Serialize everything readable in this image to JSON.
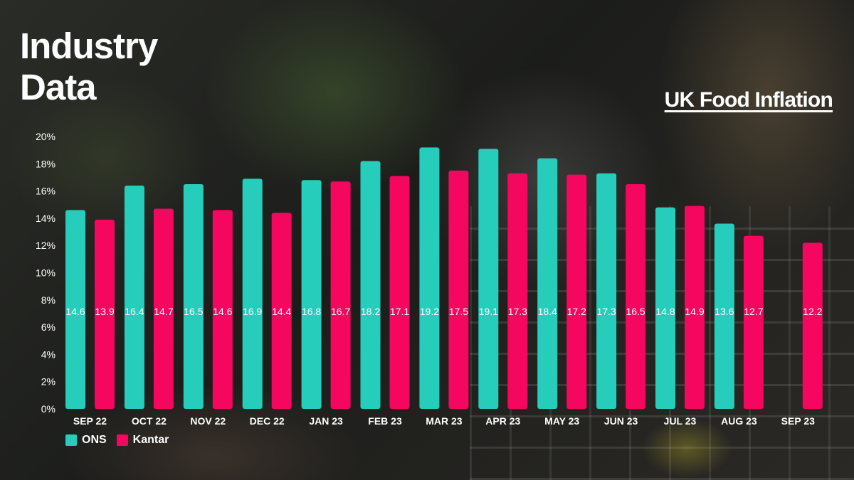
{
  "slide": {
    "title_line1": "Industry",
    "title_line2": "Data",
    "subtitle": "UK Food Inflation"
  },
  "colors": {
    "ons": "#27cdbb",
    "kantar": "#f5075f"
  },
  "chart_data": {
    "type": "bar",
    "title": "UK Food Inflation",
    "xlabel": "",
    "ylabel": "",
    "ylim": [
      0,
      20
    ],
    "ytick_step": 2,
    "ytick_suffix": "%",
    "grid": false,
    "legend": "bottom-left",
    "categories": [
      "SEP 22",
      "OCT 22",
      "NOV 22",
      "DEC 22",
      "JAN 23",
      "FEB 23",
      "MAR 23",
      "APR 23",
      "MAY 23",
      "JUN 23",
      "JUL 23",
      "AUG 23",
      "SEP 23"
    ],
    "series": [
      {
        "name": "ONS",
        "values": [
          14.6,
          16.4,
          16.5,
          16.9,
          16.8,
          18.2,
          19.2,
          19.1,
          18.4,
          17.3,
          14.8,
          13.6,
          null
        ]
      },
      {
        "name": "Kantar",
        "values": [
          13.9,
          14.7,
          14.6,
          14.4,
          16.7,
          17.1,
          17.5,
          17.3,
          17.2,
          16.5,
          14.9,
          12.7,
          12.2
        ]
      }
    ]
  }
}
